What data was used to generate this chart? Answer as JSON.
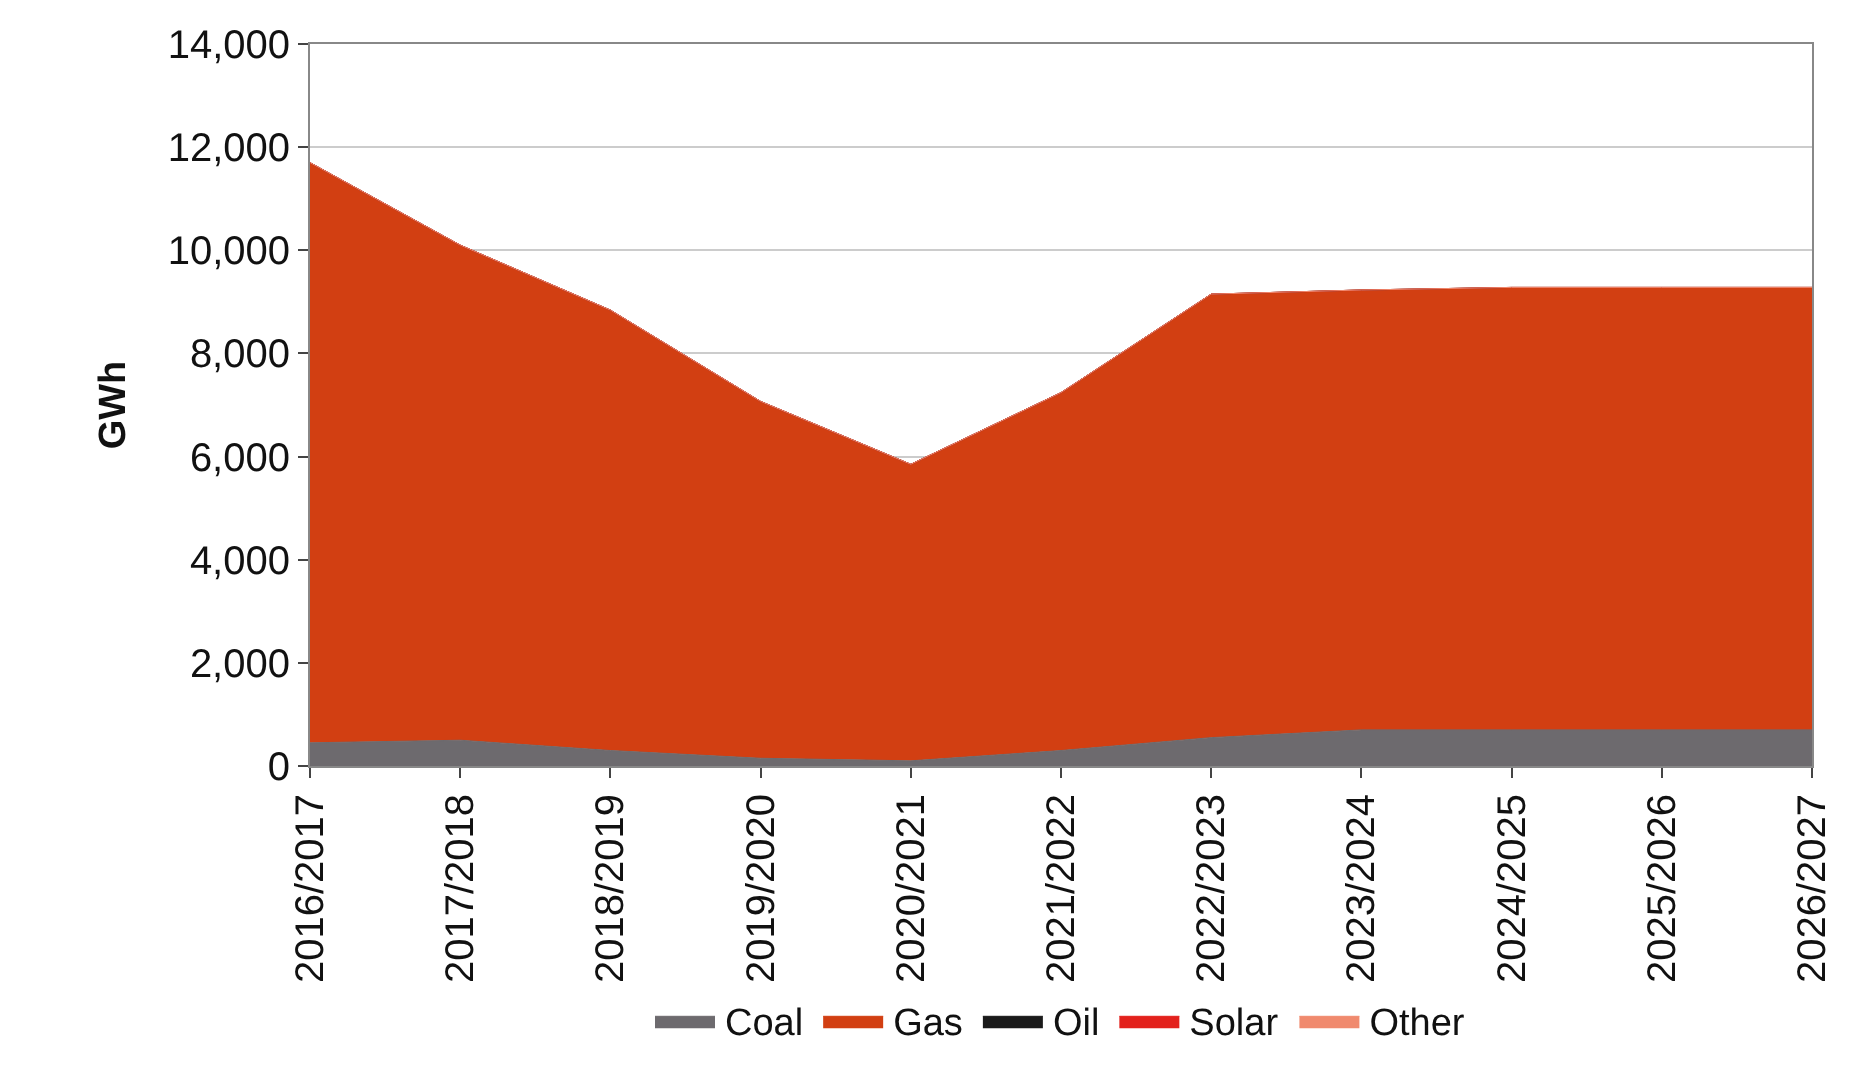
{
  "chart_data": {
    "type": "area",
    "stacked": true,
    "ylabel": "GWh",
    "categories": [
      "2016/2017",
      "2017/2018",
      "2018/2019",
      "2019/2020",
      "2020/2021",
      "2021/2022",
      "2022/2023",
      "2023/2024",
      "2024/2025",
      "2025/2026",
      "2026/2027"
    ],
    "series": [
      {
        "name": "Coal",
        "color": "#6d6a6e",
        "values": [
          450,
          500,
          300,
          150,
          100,
          300,
          550,
          700,
          700,
          700,
          700
        ]
      },
      {
        "name": "Gas",
        "color": "#d23f12",
        "values": [
          11250,
          9600,
          8540,
          6920,
          5750,
          6940,
          8600,
          8530,
          8580,
          8580,
          8580
        ]
      },
      {
        "name": "Oil",
        "color": "#1a1a1a",
        "values": [
          null,
          null,
          null,
          null,
          null,
          null,
          null,
          null,
          null,
          null,
          null
        ]
      },
      {
        "name": "Solar",
        "color": "#e3211c",
        "values": [
          null,
          null,
          null,
          null,
          null,
          null,
          null,
          null,
          null,
          null,
          null
        ]
      },
      {
        "name": "Other",
        "color": "#f08a6e",
        "values": [
          null,
          null,
          null,
          null,
          null,
          null,
          null,
          null,
          null,
          null,
          null
        ]
      }
    ],
    "ylim": [
      0,
      14000
    ],
    "yticks": [
      {
        "value": 0,
        "label": "0"
      },
      {
        "value": 2000,
        "label": "2,000"
      },
      {
        "value": 4000,
        "label": "4,000"
      },
      {
        "value": 6000,
        "label": "6,000"
      },
      {
        "value": 8000,
        "label": "8,000"
      },
      {
        "value": 10000,
        "label": "10,000"
      },
      {
        "value": 12000,
        "label": "12,000"
      },
      {
        "value": 14000,
        "label": "14,000"
      }
    ],
    "grid": "y",
    "legend": "bottom"
  }
}
